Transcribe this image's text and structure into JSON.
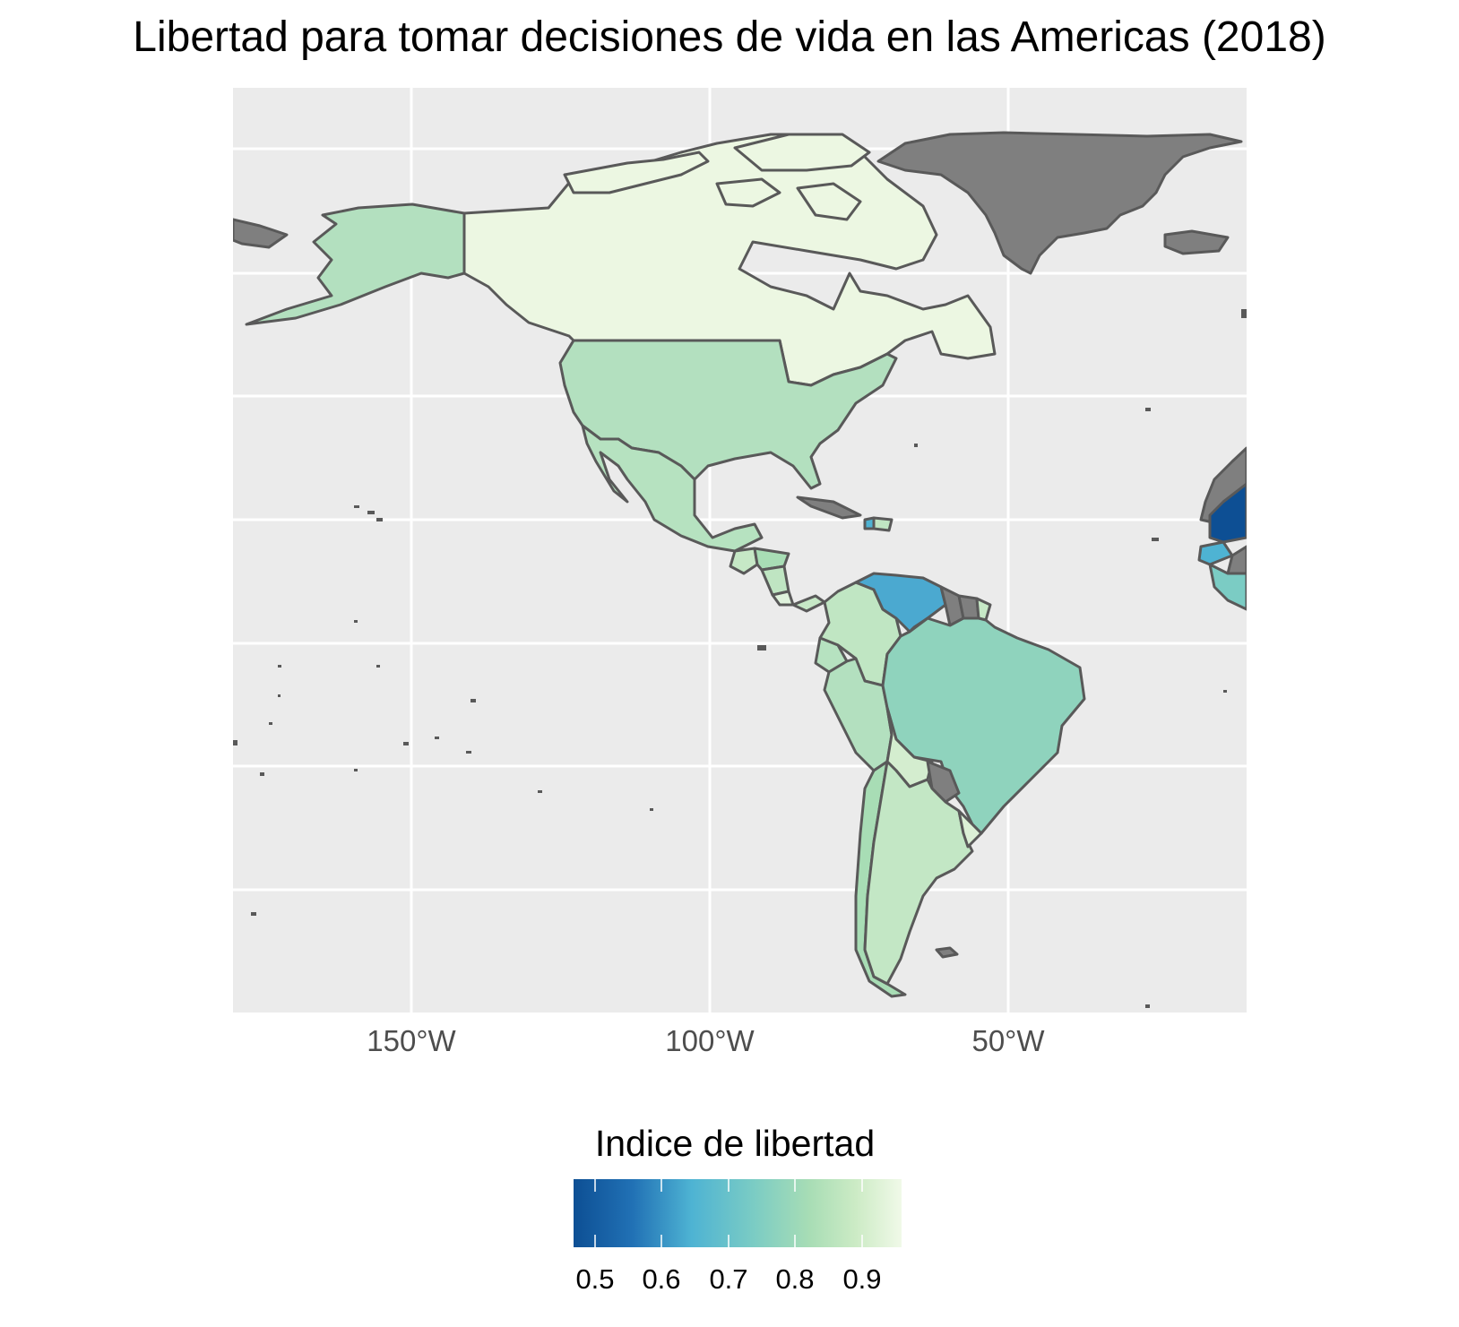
{
  "title": "Libertad para tomar decisiones de vida en las Americas (2018)",
  "axis": {
    "x_ticks": [
      "150°W",
      "100°W",
      "50°W"
    ]
  },
  "legend": {
    "title": "Indice de libertad",
    "ticks": [
      "0.5",
      "0.6",
      "0.7",
      "0.8",
      "0.9"
    ],
    "range": [
      0.47,
      0.96
    ],
    "gradient_colors": [
      "#0d4f94",
      "#2171b5",
      "#4eb3d3",
      "#7bccc4",
      "#a8ddb5",
      "#ccebc5",
      "#f0f9e8"
    ],
    "na_color": "#7f7f7f"
  },
  "colors": {
    "panel": "#ebebeb",
    "grid": "#ffffff",
    "border": "#595959"
  },
  "regions": [
    {
      "name": "Canada",
      "value": 0.93
    },
    {
      "name": "Alaska (USA)",
      "value": 0.83
    },
    {
      "name": "United States",
      "value": 0.83
    },
    {
      "name": "Greenland",
      "value": null
    },
    {
      "name": "Mexico",
      "value": 0.84
    },
    {
      "name": "Guatemala",
      "value": 0.86
    },
    {
      "name": "Honduras",
      "value": 0.8
    },
    {
      "name": "Nicaragua",
      "value": 0.85
    },
    {
      "name": "Costa Rica",
      "value": 0.9
    },
    {
      "name": "Panama",
      "value": 0.86
    },
    {
      "name": "Cuba",
      "value": null
    },
    {
      "name": "Haiti",
      "value": 0.6
    },
    {
      "name": "Dominican Republic",
      "value": 0.85
    },
    {
      "name": "Colombia",
      "value": 0.85
    },
    {
      "name": "Venezuela",
      "value": 0.62
    },
    {
      "name": "Guyana",
      "value": null
    },
    {
      "name": "Suriname",
      "value": null
    },
    {
      "name": "French Guiana",
      "value": null
    },
    {
      "name": "Ecuador",
      "value": 0.84
    },
    {
      "name": "Peru",
      "value": 0.83
    },
    {
      "name": "Brazil",
      "value": 0.77
    },
    {
      "name": "Bolivia",
      "value": 0.88
    },
    {
      "name": "Paraguay",
      "value": null
    },
    {
      "name": "Chile",
      "value": 0.8
    },
    {
      "name": "Argentina",
      "value": 0.84
    },
    {
      "name": "Uruguay",
      "value": 0.88
    },
    {
      "name": "Western Sahara",
      "value": null
    },
    {
      "name": "Mauritania",
      "value": 0.48
    },
    {
      "name": "Senegal",
      "value": 0.66
    },
    {
      "name": "Guinea",
      "value": 0.75
    }
  ]
}
